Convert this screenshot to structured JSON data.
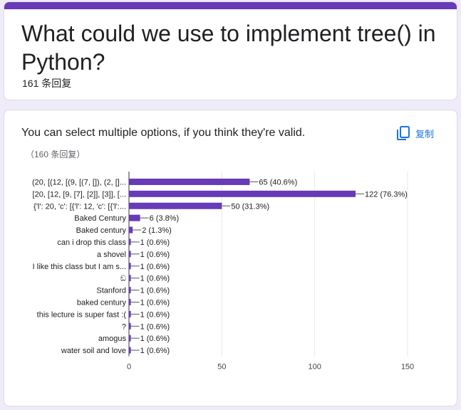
{
  "header": {
    "title": "What could we use to implement tree() in Python?",
    "response_count": "161 条回复"
  },
  "chart_card": {
    "question": "You can select multiple options, if you think they're valid.",
    "copy_label": "复制",
    "response_count": "（160 条回复）",
    "copy_icon": "copy-icon",
    "bar_color": "#673ab7",
    "link_color": "#1a73e8"
  },
  "chart_data": {
    "type": "bar",
    "orientation": "horizontal",
    "categories": [
      "(20, [(12, [(9, [(7, []), (2, []...",
      "[20, [12, [9, [7], [2]], [3]], [...",
      "{'l': 20, 'c': [{'l': 12, 'c': [{'l':...",
      "Baked Century",
      "Baked century",
      "can i drop this class",
      "a shovel",
      "I like this class but I am s...",
      "ඞ",
      "Stanford",
      "baked century",
      "this lecture is super fast :(",
      "?",
      "amogus",
      "water soil and love"
    ],
    "values": [
      65,
      122,
      50,
      6,
      2,
      1,
      1,
      1,
      1,
      1,
      1,
      1,
      1,
      1,
      1
    ],
    "value_labels": [
      "65 (40.6%)",
      "122 (76.3%)",
      "50 (31.3%)",
      "6 (3.8%)",
      "2 (1.3%)",
      "1 (0.6%)",
      "1 (0.6%)",
      "1 (0.6%)",
      "1 (0.6%)",
      "1 (0.6%)",
      "1 (0.6%)",
      "1 (0.6%)",
      "1 (0.6%)",
      "1 (0.6%)",
      "1 (0.6%)"
    ],
    "xticks": [
      "0",
      "50",
      "100",
      "150"
    ],
    "xlim": [
      0,
      150
    ],
    "grid": true
  }
}
